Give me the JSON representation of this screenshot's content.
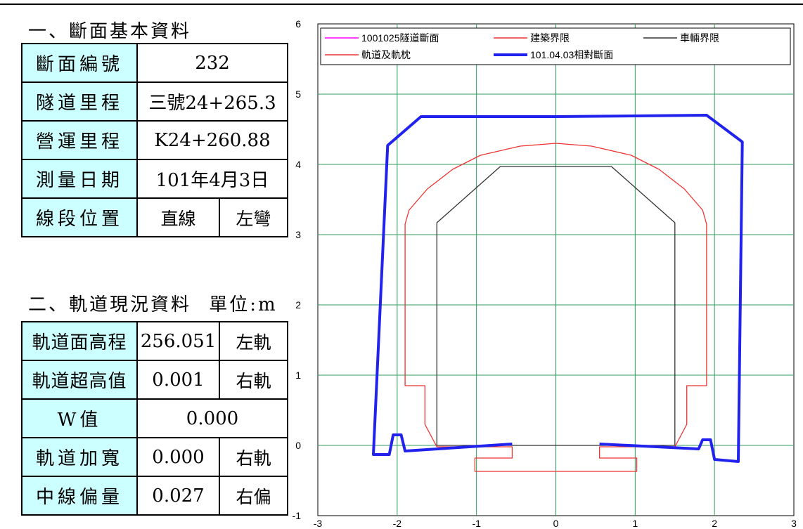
{
  "section1": {
    "heading": "一、斷面基本資料",
    "rows": [
      {
        "label": "斷面編號",
        "value": "232"
      },
      {
        "label": "隧道里程",
        "value": "三號24+265.3"
      },
      {
        "label": "營運里程",
        "value": "K24+260.88"
      },
      {
        "label": "測量日期",
        "value": "101年4月3日"
      },
      {
        "label": "線段位置",
        "value": "直線",
        "value2": "左彎"
      }
    ]
  },
  "section2": {
    "heading": "二、軌道現況資料",
    "unit": "單位:m",
    "rows": [
      {
        "label": "軌道面高程",
        "value": "256.051",
        "side": "左軌"
      },
      {
        "label": "軌道超高值",
        "value": "0.001",
        "side": "右軌"
      },
      {
        "label": "W值",
        "value": "0.000"
      },
      {
        "label": "軌道加寬",
        "value": "0.000",
        "side": "右軌"
      },
      {
        "label": "中線偏量",
        "value": "0.027",
        "side": "右偏"
      }
    ]
  },
  "chart_data": {
    "type": "line",
    "title": "",
    "xlabel": "",
    "ylabel": "",
    "xlim": [
      -3,
      3
    ],
    "ylim": [
      -1,
      6
    ],
    "xticks": [
      "-3",
      "-2",
      "-1",
      "0",
      "1",
      "2",
      "3"
    ],
    "yticks": [
      "-1",
      "0",
      "1",
      "2",
      "3",
      "4",
      "5",
      "6"
    ],
    "grid": true,
    "grid_color": "#2e9e5e",
    "legend_position": "top",
    "series": [
      {
        "name": "1001025隧道斷面",
        "color": "#ff00ff",
        "points": []
      },
      {
        "name": "建築界限",
        "color": "#ee3333",
        "points": [
          [
            -1.5,
            -0.02
          ],
          [
            -1.65,
            0.3
          ],
          [
            -1.65,
            0.85
          ],
          [
            -1.9,
            0.85
          ],
          [
            -1.9,
            3.15
          ],
          [
            -1.85,
            3.35
          ],
          [
            -1.62,
            3.65
          ],
          [
            -1.3,
            3.93
          ],
          [
            -0.95,
            4.13
          ],
          [
            -0.45,
            4.26
          ],
          [
            0,
            4.3
          ],
          [
            0.45,
            4.26
          ],
          [
            0.95,
            4.13
          ],
          [
            1.3,
            3.93
          ],
          [
            1.62,
            3.65
          ],
          [
            1.85,
            3.35
          ],
          [
            1.9,
            3.15
          ],
          [
            1.9,
            0.85
          ],
          [
            1.65,
            0.85
          ],
          [
            1.65,
            0.3
          ],
          [
            1.5,
            -0.02
          ]
        ]
      },
      {
        "name": "軌道及軌枕",
        "color": "#ee3333",
        "points": [
          [
            -1.5,
            -0.02
          ],
          [
            -0.55,
            -0.02
          ],
          [
            -0.55,
            -0.18
          ],
          [
            -1.02,
            -0.18
          ],
          [
            -1.02,
            -0.37
          ],
          [
            1.02,
            -0.37
          ],
          [
            1.02,
            -0.18
          ],
          [
            0.55,
            -0.18
          ],
          [
            0.55,
            -0.02
          ],
          [
            1.5,
            -0.02
          ]
        ]
      },
      {
        "name": "車輛界限",
        "color": "#333333",
        "points": [
          [
            -1.5,
            0
          ],
          [
            -1.5,
            3.17
          ],
          [
            -0.7,
            3.97
          ],
          [
            0.7,
            3.97
          ],
          [
            1.5,
            3.17
          ],
          [
            1.5,
            0
          ],
          [
            -1.5,
            0
          ]
        ]
      },
      {
        "name": "101.04.03相對斷面",
        "color": "#2222ee",
        "points": [
          [
            -0.55,
            0.02
          ],
          [
            -1.9,
            -0.08
          ],
          [
            -1.95,
            0.15
          ],
          [
            -2.05,
            0.15
          ],
          [
            -2.1,
            -0.13
          ],
          [
            -2.3,
            -0.13
          ],
          [
            -2.12,
            4.27
          ],
          [
            -1.7,
            4.68
          ],
          [
            0,
            4.68
          ],
          [
            1.9,
            4.7
          ],
          [
            2.35,
            4.32
          ],
          [
            2.3,
            -0.23
          ],
          [
            2.0,
            -0.2
          ],
          [
            1.95,
            0.08
          ],
          [
            1.85,
            0.08
          ],
          [
            1.8,
            -0.05
          ],
          [
            0.55,
            0.02
          ]
        ]
      }
    ]
  }
}
